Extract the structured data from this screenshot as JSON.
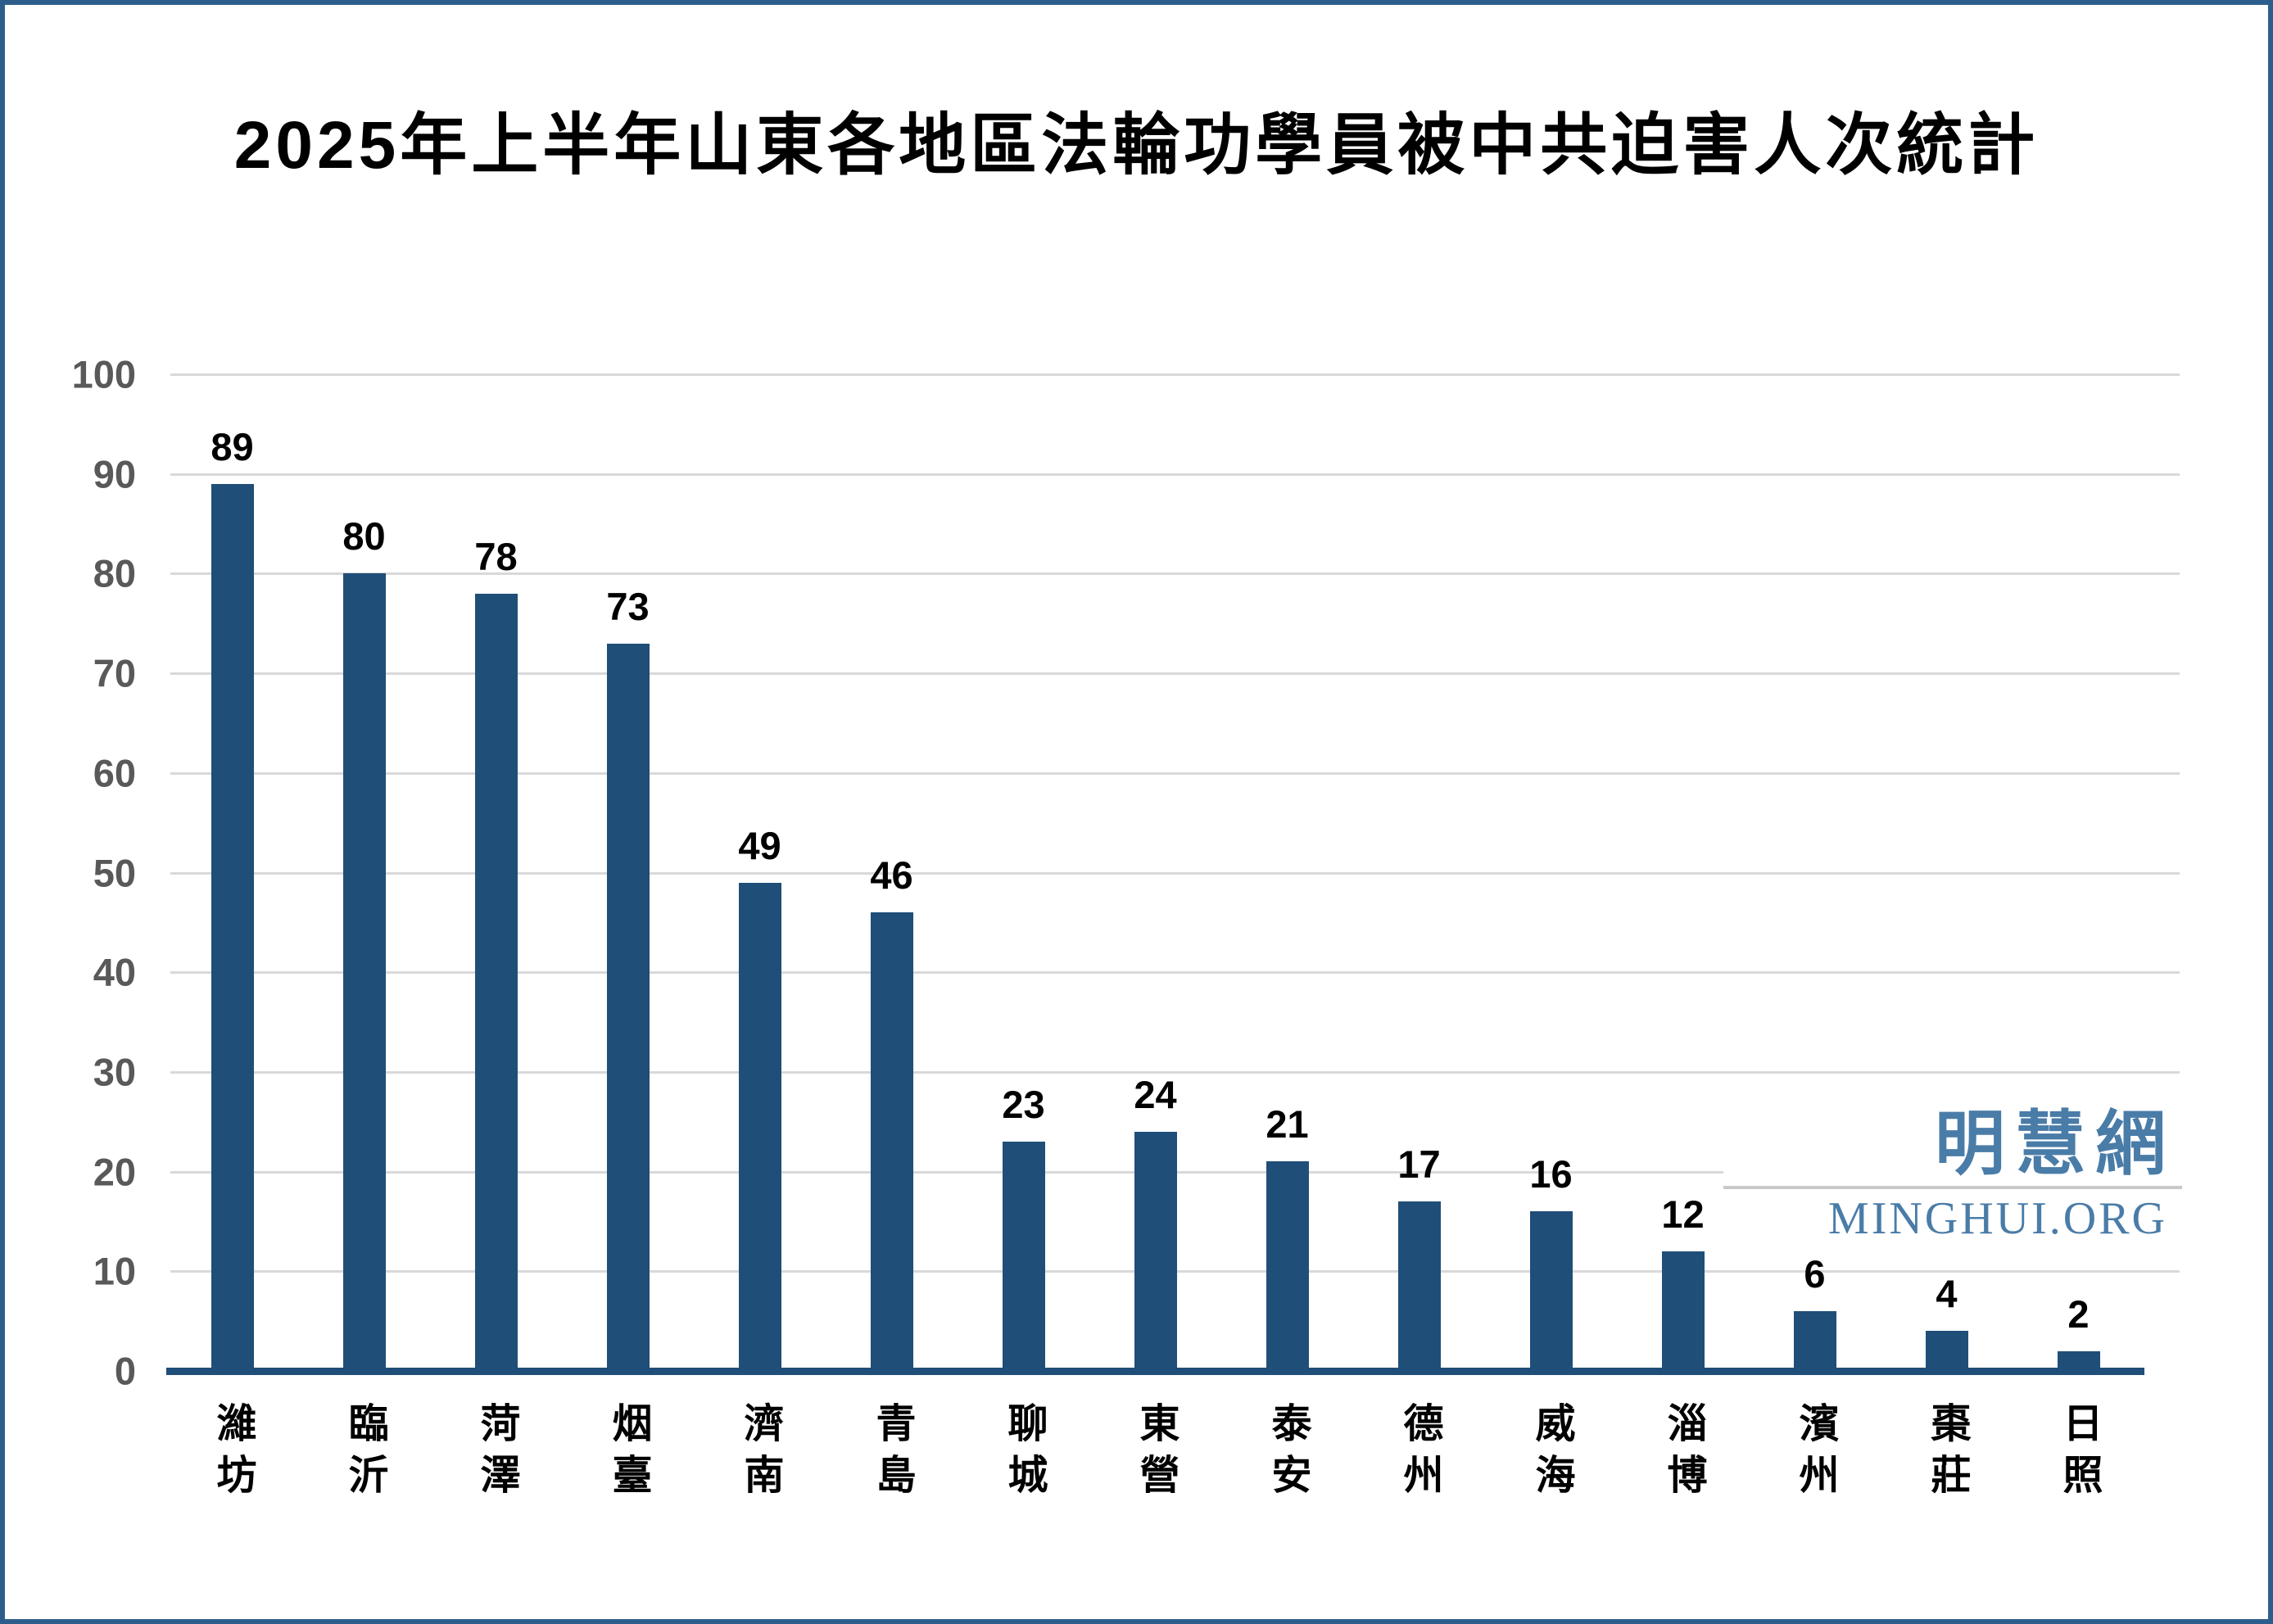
{
  "watermark": {
    "cjk": "明慧網",
    "latin": "MINGHUI.ORG"
  },
  "chart_data": {
    "type": "bar",
    "title": "2025年上半年山東各地區法輪功學員被中共迫害人次統計",
    "categories": [
      "濰坊",
      "臨沂",
      "菏澤",
      "烟臺",
      "濟南",
      "青島",
      "聊城",
      "東營",
      "泰安",
      "德州",
      "威海",
      "淄博",
      "濱州",
      "棗莊",
      "日照"
    ],
    "values": [
      89,
      80,
      78,
      73,
      49,
      46,
      23,
      24,
      21,
      17,
      16,
      12,
      6,
      4,
      2
    ],
    "xlabel": "",
    "ylabel": "",
    "ylim": [
      0,
      100
    ],
    "yticks": [
      0,
      10,
      20,
      30,
      40,
      50,
      60,
      70,
      80,
      90,
      100
    ],
    "grid": true,
    "legend": "none",
    "bar_color": "#1F4E78",
    "axis_color": "#1F4E78",
    "gridline_color": "#D9D9D9",
    "tick_label_color": "#595959",
    "value_label_color": "#000000"
  }
}
